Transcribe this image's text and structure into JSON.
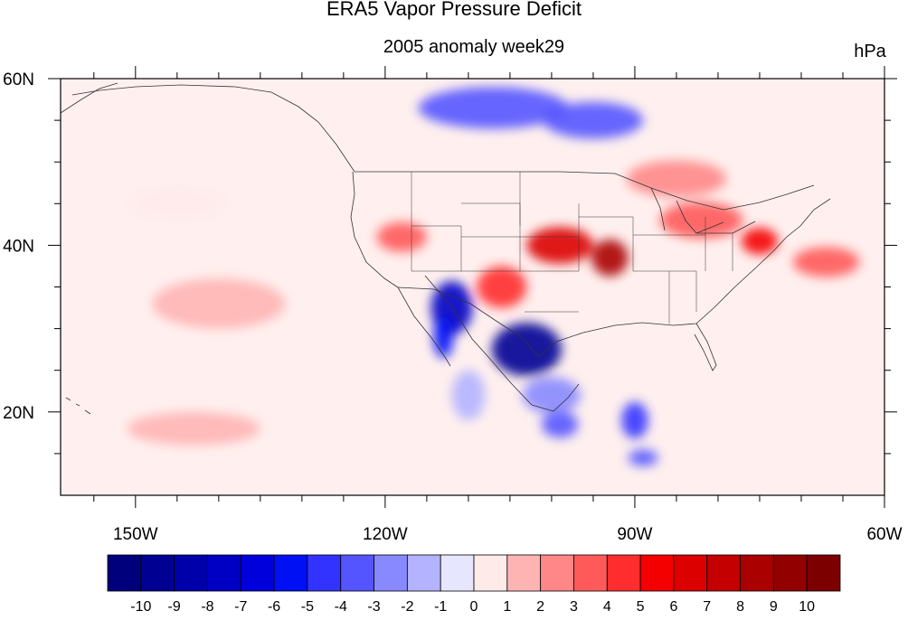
{
  "figure": {
    "title": "ERA5 Vapor Pressure Deficit",
    "subtitle": "2005 anomaly week29",
    "units": "hPa"
  },
  "map": {
    "lon_range": [
      -159,
      -60
    ],
    "lat_range": [
      10,
      60
    ],
    "xticks": [
      {
        "label": "150W",
        "lon": -150
      },
      {
        "label": "120W",
        "lon": -120
      },
      {
        "label": "90W",
        "lon": -90
      },
      {
        "label": "60W",
        "lon": -60
      }
    ],
    "yticks": [
      {
        "label": "60N",
        "lat": 60
      },
      {
        "label": "40N",
        "lat": 40
      },
      {
        "label": "20N",
        "lat": 20
      }
    ],
    "minor_lon": [
      -155,
      -145,
      -140,
      -135,
      -130,
      -125,
      -115,
      -110,
      -105,
      -100,
      -95,
      -85,
      -80,
      -75,
      -70,
      -65
    ],
    "minor_lat": [
      55,
      50,
      45,
      35,
      30,
      25,
      15
    ],
    "background_color": "#fff0ef",
    "anomaly_blobs": [
      {
        "lon": -103,
        "lat": 27.5,
        "rlon": 4.2,
        "rlat": 3.2,
        "value": -10
      },
      {
        "lon": -112,
        "lat": 32.5,
        "rlon": 2.5,
        "rlat": 3.2,
        "value": -8
      },
      {
        "lon": -113,
        "lat": 29,
        "rlon": 1.2,
        "rlat": 2.5,
        "value": -6
      },
      {
        "lon": -107,
        "lat": 56.5,
        "rlon": 9,
        "rlat": 2.5,
        "value": -4
      },
      {
        "lon": -95,
        "lat": 55,
        "rlon": 6,
        "rlat": 2.2,
        "value": -4
      },
      {
        "lon": -99,
        "lat": 18.5,
        "rlon": 2.2,
        "rlat": 1.6,
        "value": -4
      },
      {
        "lon": -90,
        "lat": 19,
        "rlon": 1.6,
        "rlat": 2.2,
        "value": -5
      },
      {
        "lon": -89,
        "lat": 14.5,
        "rlon": 1.8,
        "rlat": 1,
        "value": -4
      },
      {
        "lon": -100,
        "lat": 22,
        "rlon": 3.5,
        "rlat": 2.2,
        "value": -3
      },
      {
        "lon": -110,
        "lat": 22,
        "rlon": 2,
        "rlat": 3,
        "value": -2
      },
      {
        "lon": -99,
        "lat": 40,
        "rlon": 4,
        "rlat": 2.2,
        "value": 7
      },
      {
        "lon": -93,
        "lat": 38.5,
        "rlon": 2.2,
        "rlat": 2.2,
        "value": 9
      },
      {
        "lon": -106,
        "lat": 35,
        "rlon": 3,
        "rlat": 2.5,
        "value": 5
      },
      {
        "lon": -118,
        "lat": 41,
        "rlon": 3,
        "rlat": 1.8,
        "value": 4
      },
      {
        "lon": -75,
        "lat": 40.5,
        "rlon": 2.2,
        "rlat": 1.6,
        "value": 6
      },
      {
        "lon": -67,
        "lat": 38,
        "rlon": 4,
        "rlat": 1.8,
        "value": 4
      },
      {
        "lon": -82,
        "lat": 43,
        "rlon": 5,
        "rlat": 2.2,
        "value": 4
      },
      {
        "lon": -85,
        "lat": 48,
        "rlon": 6,
        "rlat": 2.2,
        "value": 3
      },
      {
        "lon": -140,
        "lat": 33,
        "rlon": 8,
        "rlat": 3,
        "value": 2
      },
      {
        "lon": -143,
        "lat": 18,
        "rlon": 8,
        "rlat": 2,
        "value": 2
      },
      {
        "lon": -145,
        "lat": 45,
        "rlon": 6,
        "rlat": 2,
        "value": 1
      }
    ]
  },
  "colorbar": {
    "labels": [
      "-10",
      "-9",
      "-8",
      "-7",
      "-6",
      "-5",
      "-4",
      "-3",
      "-2",
      "-1",
      "0",
      "1",
      "2",
      "3",
      "4",
      "5",
      "6",
      "7",
      "8",
      "9",
      "10"
    ],
    "colors": [
      "#00007c",
      "#000093",
      "#0000ab",
      "#0000c4",
      "#0000dc",
      "#0010f5",
      "#3333ff",
      "#5555ff",
      "#8888ff",
      "#b3b3ff",
      "#e6e6ff",
      "#ffeaea",
      "#ffb4b4",
      "#ff8787",
      "#ff5a5a",
      "#ff2d2d",
      "#f50000",
      "#dc0000",
      "#c40000",
      "#ab0000",
      "#930000",
      "#7c0000"
    ]
  }
}
